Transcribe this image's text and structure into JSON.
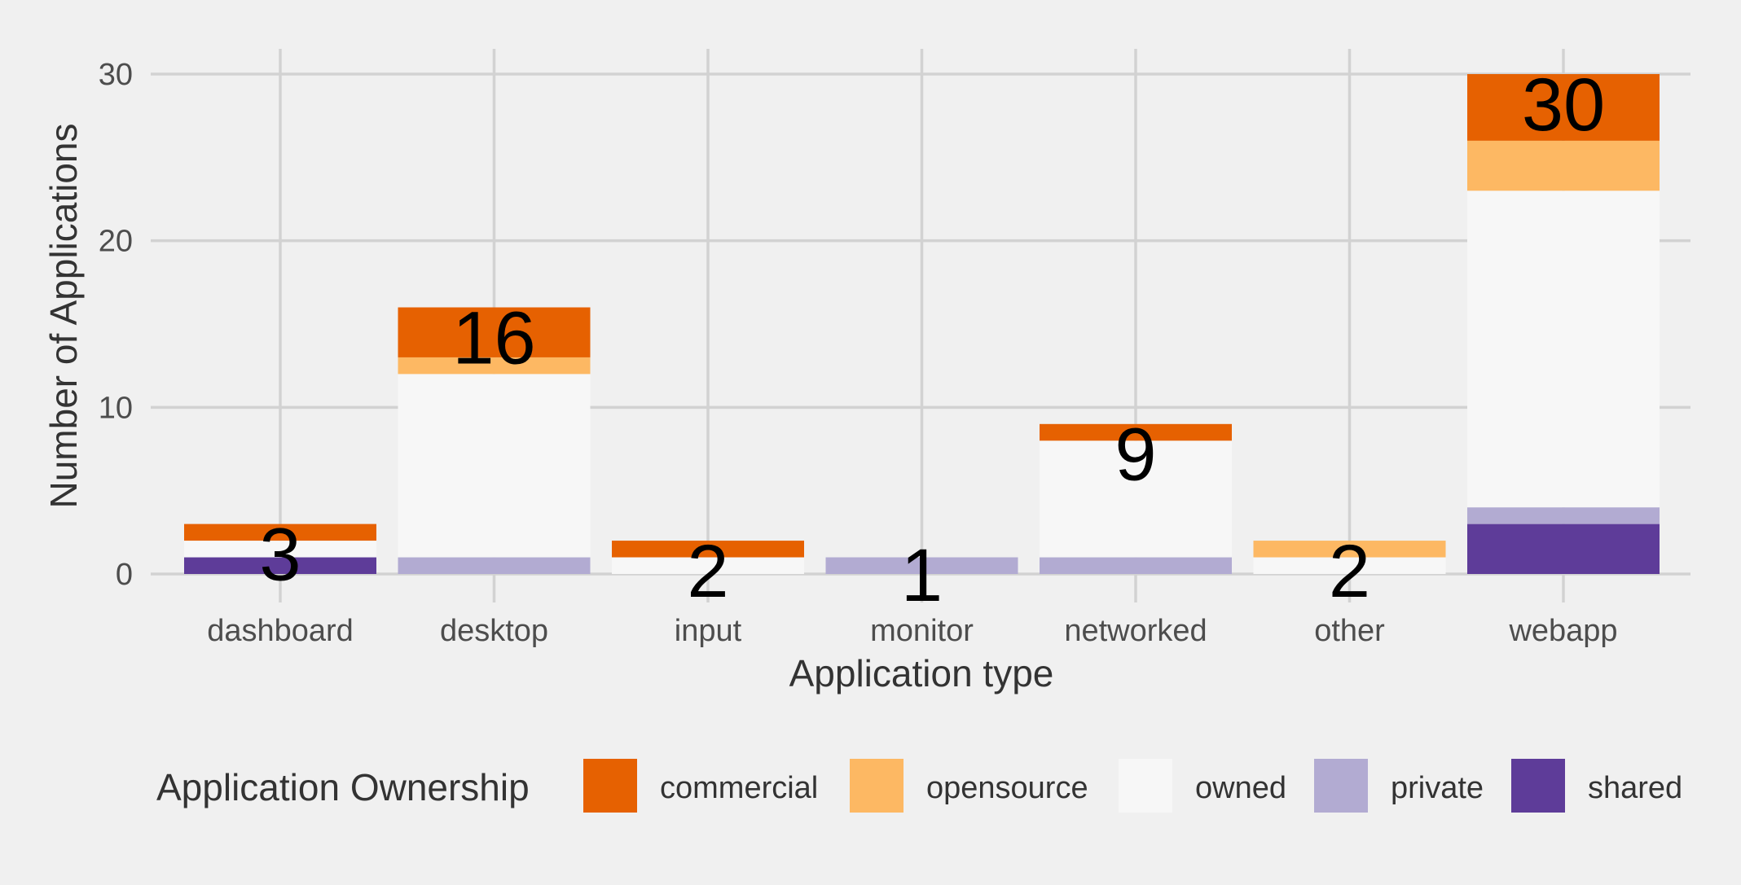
{
  "chart_data": {
    "type": "bar",
    "stacked": true,
    "xlabel": "Application type",
    "ylabel": "Number of Applications",
    "ylim": [
      0,
      30
    ],
    "yticks": [
      0,
      10,
      20,
      30
    ],
    "grid": true,
    "legend_title": "Application Ownership",
    "legend_position": "bottom",
    "categories": [
      "dashboard",
      "desktop",
      "input",
      "monitor",
      "networked",
      "other",
      "webapp"
    ],
    "totals": [
      3,
      16,
      2,
      1,
      9,
      2,
      30
    ],
    "series": [
      {
        "name": "shared",
        "color": "#5e3c99",
        "values": [
          1,
          0,
          0,
          0,
          0,
          0,
          3
        ]
      },
      {
        "name": "private",
        "color": "#b2abd2",
        "values": [
          0,
          1,
          0,
          1,
          1,
          0,
          1
        ]
      },
      {
        "name": "owned",
        "color": "#f7f7f7",
        "values": [
          1,
          11,
          1,
          0,
          7,
          1,
          19
        ]
      },
      {
        "name": "opensource",
        "color": "#fdb863",
        "values": [
          0,
          1,
          0,
          0,
          0,
          1,
          3
        ]
      },
      {
        "name": "commercial",
        "color": "#e66101",
        "values": [
          1,
          3,
          1,
          0,
          1,
          0,
          4
        ]
      }
    ],
    "legend_order": [
      "commercial",
      "opensource",
      "owned",
      "private",
      "shared"
    ]
  }
}
